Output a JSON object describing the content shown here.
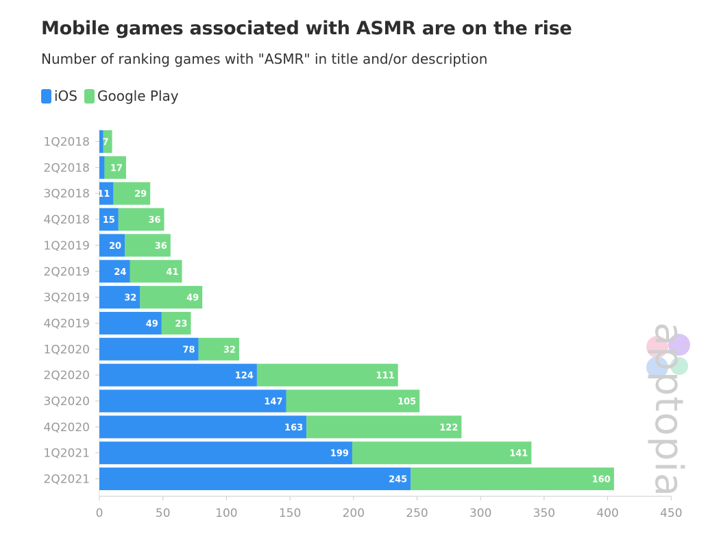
{
  "title": "Mobile games associated with ASMR are on the rise",
  "subtitle": "Number of ranking games with \"ASMR\" in title and/or description",
  "legend": [
    {
      "label": "iOS",
      "color": "#3390f3"
    },
    {
      "label": "Google Play",
      "color": "#74d985"
    }
  ],
  "watermark": "apptopia",
  "chart_data": {
    "type": "bar",
    "orientation": "horizontal",
    "stacked": true,
    "title": "Mobile games associated with ASMR are on the rise",
    "subtitle": "Number of ranking games with \"ASMR\" in title and/or description",
    "categories": [
      "1Q2018",
      "2Q2018",
      "3Q2018",
      "4Q2018",
      "1Q2019",
      "2Q2019",
      "3Q2019",
      "4Q2019",
      "1Q2020",
      "2Q2020",
      "3Q2020",
      "4Q2020",
      "1Q2021",
      "2Q2021"
    ],
    "series": [
      {
        "name": "iOS",
        "color": "#3390f3",
        "values": [
          3,
          4,
          11,
          15,
          20,
          24,
          32,
          49,
          78,
          124,
          147,
          163,
          199,
          245
        ],
        "labels": [
          "",
          "",
          "11",
          "15",
          "20",
          "24",
          "32",
          "49",
          "78",
          "124",
          "147",
          "163",
          "199",
          "245"
        ]
      },
      {
        "name": "Google Play",
        "color": "#74d985",
        "values": [
          7,
          17,
          29,
          36,
          36,
          41,
          49,
          23,
          32,
          111,
          105,
          122,
          141,
          160
        ],
        "labels": [
          "7",
          "17",
          "29",
          "36",
          "36",
          "41",
          "49",
          "23",
          "32",
          "111",
          "105",
          "122",
          "141",
          "160"
        ]
      }
    ],
    "xlim": [
      0,
      450
    ],
    "xticks": [
      "0",
      "50",
      "100",
      "150",
      "200",
      "250",
      "300",
      "350",
      "400",
      "450"
    ],
    "xtick_values": [
      0,
      50,
      100,
      150,
      200,
      250,
      300,
      350,
      400,
      450
    ],
    "legend_position": "top-left",
    "grid": false
  }
}
